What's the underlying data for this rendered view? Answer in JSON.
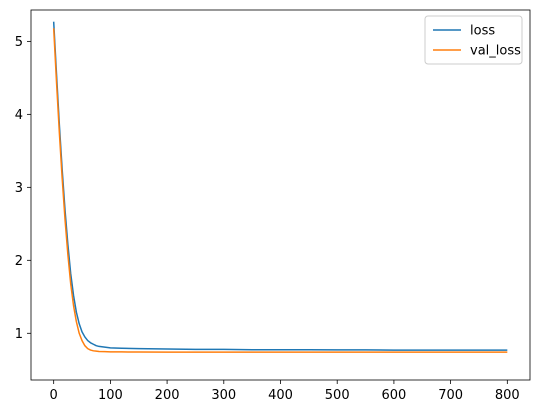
{
  "chart_data": {
    "type": "line",
    "title": "",
    "xlabel": "",
    "ylabel": "",
    "xlim": [
      -40,
      840
    ],
    "ylim": [
      0.36,
      5.43
    ],
    "xticks": [
      0,
      100,
      200,
      300,
      400,
      500,
      600,
      700,
      800
    ],
    "yticks": [
      1,
      2,
      3,
      4,
      5
    ],
    "grid": false,
    "legend_position": "top-right",
    "series": [
      {
        "name": "loss",
        "color": "#1f77b4",
        "x": [
          0,
          5,
          10,
          15,
          20,
          25,
          30,
          35,
          40,
          45,
          50,
          55,
          60,
          65,
          70,
          75,
          80,
          90,
          100,
          120,
          150,
          200,
          250,
          300,
          350,
          400,
          450,
          500,
          550,
          600,
          650,
          700,
          750,
          800
        ],
        "y": [
          5.27,
          4.55,
          3.86,
          3.24,
          2.69,
          2.22,
          1.82,
          1.52,
          1.29,
          1.13,
          1.02,
          0.95,
          0.9,
          0.87,
          0.85,
          0.83,
          0.82,
          0.81,
          0.8,
          0.795,
          0.79,
          0.785,
          0.78,
          0.78,
          0.775,
          0.775,
          0.775,
          0.772,
          0.772,
          0.77,
          0.77,
          0.77,
          0.77,
          0.77
        ]
      },
      {
        "name": "val_loss",
        "color": "#ff7f0e",
        "x": [
          0,
          5,
          10,
          15,
          20,
          25,
          30,
          35,
          40,
          45,
          50,
          55,
          60,
          65,
          70,
          75,
          80,
          90,
          100,
          120,
          150,
          200,
          250,
          300,
          350,
          400,
          450,
          500,
          550,
          600,
          650,
          700,
          750,
          800
        ],
        "y": [
          5.18,
          4.44,
          3.75,
          3.12,
          2.56,
          2.08,
          1.68,
          1.38,
          1.16,
          1.0,
          0.9,
          0.83,
          0.79,
          0.77,
          0.76,
          0.755,
          0.75,
          0.748,
          0.745,
          0.745,
          0.743,
          0.742,
          0.742,
          0.742,
          0.742,
          0.742,
          0.742,
          0.742,
          0.742,
          0.742,
          0.742,
          0.742,
          0.742,
          0.742
        ]
      }
    ]
  }
}
